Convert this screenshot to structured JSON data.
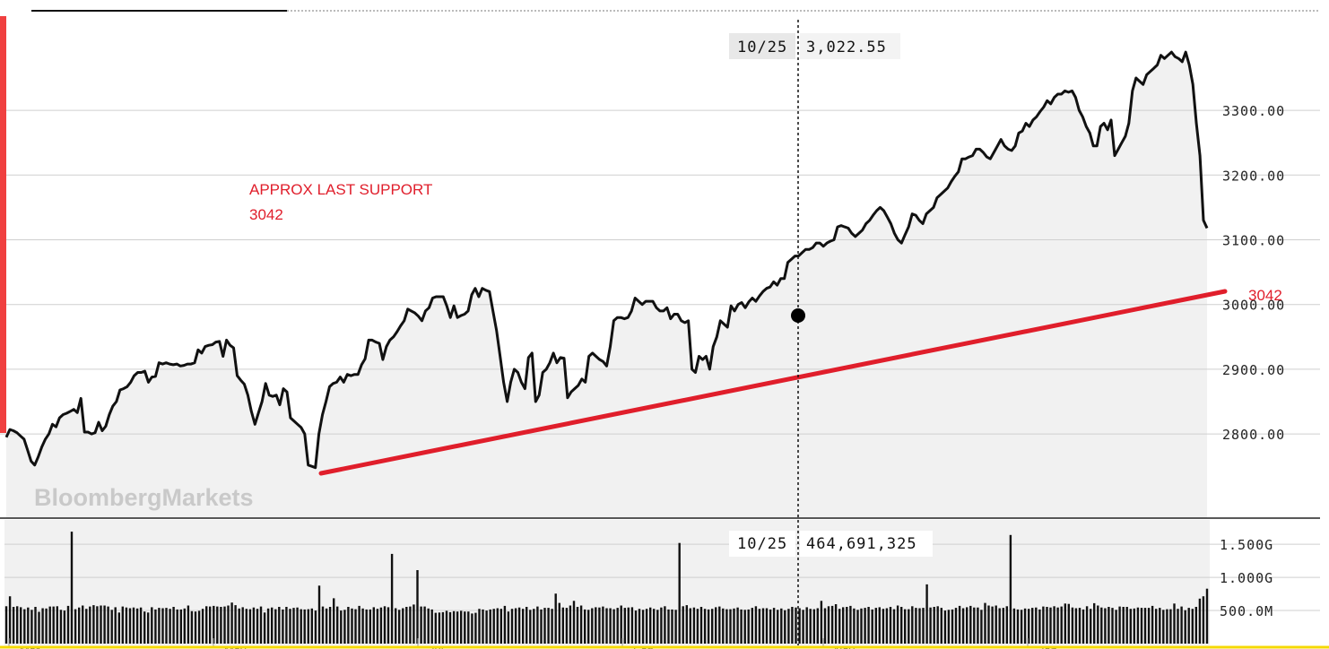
{
  "watermark": "BloombergMarkets",
  "annotation": {
    "line1": "APPROX LAST SUPPORT",
    "line2": "3042"
  },
  "trendline_label": "3042",
  "crosshair": {
    "date": "10/25",
    "price": "3,022.55",
    "volume": "464,691,325"
  },
  "colors": {
    "line": "#111111",
    "trend": "#e01e2b",
    "panel": "#f1f1f1",
    "grid": "#cfcfcf",
    "accent_bar": "#f04040"
  },
  "chart_data": [
    {
      "type": "line",
      "title": "",
      "y_ticks": [
        "2800.00",
        "2900.00",
        "3000.00",
        "3100.00",
        "3200.00",
        "3300.00"
      ],
      "x_ticks": [
        "Mar",
        "May",
        "Jul",
        "Sep",
        "Nov",
        "Jan"
      ],
      "ylim": [
        2670,
        3440
      ],
      "grid": true,
      "series": [
        {
          "values": [
            2795,
            2807,
            2805,
            2802,
            2797,
            2792,
            2775,
            2758,
            2752,
            2765,
            2780,
            2792,
            2800,
            2815,
            2811,
            2825,
            2830,
            2832,
            2835,
            2838,
            2833,
            2855,
            2803,
            2803,
            2800,
            2802,
            2818,
            2805,
            2812,
            2830,
            2843,
            2850,
            2868,
            2870,
            2873,
            2880,
            2890,
            2895,
            2895,
            2897,
            2880,
            2888,
            2889,
            2910,
            2908,
            2910,
            2908,
            2907,
            2908,
            2905,
            2906,
            2908,
            2908,
            2910,
            2930,
            2925,
            2935,
            2937,
            2938,
            2942,
            2943,
            2920,
            2945,
            2937,
            2933,
            2890,
            2883,
            2877,
            2860,
            2835,
            2815,
            2833,
            2850,
            2878,
            2860,
            2858,
            2860,
            2845,
            2870,
            2865,
            2825,
            2820,
            2815,
            2810,
            2800,
            2752,
            2750,
            2748,
            2800,
            2830,
            2850,
            2873,
            2878,
            2880,
            2888,
            2880,
            2892,
            2890,
            2892,
            2892,
            2907,
            2916,
            2945,
            2945,
            2942,
            2940,
            2915,
            2935,
            2945,
            2950,
            2958,
            2967,
            2975,
            2993,
            2990,
            2987,
            2982,
            2975,
            2990,
            2995,
            3010,
            3012,
            3012,
            3012,
            2998,
            2980,
            2998,
            2980,
            2983,
            2985,
            2990,
            3015,
            3025,
            3012,
            3025,
            3022,
            3020,
            2990,
            2960,
            2920,
            2880,
            2850,
            2880,
            2900,
            2895,
            2880,
            2870,
            2918,
            2925,
            2850,
            2860,
            2895,
            2900,
            2910,
            2925,
            2910,
            2918,
            2917,
            2856,
            2865,
            2870,
            2875,
            2885,
            2880,
            2920,
            2925,
            2920,
            2915,
            2912,
            2905,
            2935,
            2975,
            2980,
            2980,
            2978,
            2980,
            2990,
            3010,
            3005,
            3000,
            3005,
            3005,
            3005,
            2995,
            2990,
            2990,
            2995,
            2978,
            2985,
            2985,
            2975,
            2972,
            2975,
            2900,
            2895,
            2920,
            2915,
            2920,
            2900,
            2935,
            2950,
            2975,
            2970,
            2965,
            2998,
            2990,
            3000,
            3003,
            2995,
            3004,
            3010,
            3005,
            3013,
            3020,
            3025,
            3027,
            3035,
            3030,
            3040,
            3040,
            3065,
            3070,
            3075,
            3075,
            3080,
            3085,
            3085,
            3088,
            3095,
            3095,
            3090,
            3095,
            3098,
            3100,
            3120,
            3122,
            3120,
            3118,
            3110,
            3105,
            3110,
            3115,
            3125,
            3130,
            3138,
            3145,
            3150,
            3145,
            3135,
            3125,
            3110,
            3100,
            3095,
            3108,
            3120,
            3140,
            3138,
            3130,
            3125,
            3140,
            3145,
            3150,
            3165,
            3170,
            3175,
            3180,
            3190,
            3198,
            3205,
            3225,
            3225,
            3228,
            3230,
            3240,
            3240,
            3235,
            3228,
            3225,
            3235,
            3245,
            3255,
            3245,
            3240,
            3238,
            3245,
            3265,
            3268,
            3280,
            3275,
            3285,
            3290,
            3298,
            3305,
            3315,
            3310,
            3320,
            3325,
            3325,
            3330,
            3328,
            3330,
            3320,
            3300,
            3290,
            3275,
            3265,
            3245,
            3245,
            3275,
            3280,
            3270,
            3285,
            3230,
            3240,
            3250,
            3260,
            3280,
            3330,
            3350,
            3345,
            3340,
            3355,
            3360,
            3365,
            3370,
            3385,
            3380,
            3385,
            3390,
            3383,
            3380,
            3375,
            3390,
            3370,
            3340,
            3280,
            3230,
            3130,
            3118
          ]
        }
      ]
    },
    {
      "type": "bar",
      "title": "",
      "y_ticks": [
        "500.0M",
        "1.000G",
        "1.500G"
      ],
      "ylim": [
        0,
        1800000000
      ],
      "values": [
        565,
        715,
        555,
        565,
        550,
        520,
        545,
        510,
        555,
        480,
        535,
        530,
        560,
        560,
        565,
        510,
        500,
        570,
        1690,
        520,
        545,
        575,
        525,
        560,
        580,
        565,
        575,
        575,
        560,
        510,
        550,
        470,
        560,
        545,
        535,
        545,
        530,
        545,
        485,
        470,
        550,
        515,
        540,
        535,
        540,
        525,
        555,
        515,
        515,
        530,
        575,
        490,
        485,
        495,
        525,
        565,
        560,
        570,
        560,
        555,
        560,
        575,
        620,
        580,
        530,
        550,
        525,
        520,
        545,
        525,
        560,
        470,
        530,
        545,
        520,
        555,
        515,
        555,
        525,
        540,
        545,
        520,
        515,
        520,
        530,
        500,
        875,
        560,
        530,
        555,
        685,
        560,
        500,
        510,
        555,
        530,
        520,
        570,
        530,
        515,
        515,
        550,
        525,
        545,
        565,
        550,
        1355,
        535,
        510,
        535,
        555,
        560,
        590,
        1110,
        560,
        560,
        530,
        515,
        465,
        470,
        475,
        495,
        475,
        490,
        485,
        495,
        485,
        485,
        455,
        465,
        525,
        515,
        500,
        515,
        525,
        535,
        525,
        570,
        485,
        525,
        535,
        545,
        525,
        555,
        510,
        525,
        560,
        515,
        540,
        540,
        525,
        755,
        615,
        545,
        540,
        575,
        645,
        555,
        575,
        515,
        510,
        535,
        550,
        545,
        560,
        535,
        535,
        520,
        540,
        575,
        540,
        545,
        550,
        500,
        525,
        510,
        525,
        545,
        525,
        510,
        545,
        565,
        515,
        515,
        510,
        1520,
        565,
        580,
        535,
        545,
        525,
        555,
        525,
        515,
        525,
        550,
        560,
        530,
        520,
        520,
        530,
        545,
        515,
        510,
        515,
        540,
        565,
        525,
        535,
        535,
        515,
        540,
        510,
        530,
        505,
        525,
        555,
        545,
        535,
        510,
        550,
        525,
        520,
        535,
        645,
        535,
        565,
        570,
        595,
        525,
        550,
        555,
        570,
        530,
        510,
        530,
        540,
        555,
        515,
        540,
        550,
        525,
        535,
        555,
        520,
        575,
        555,
        520,
        520,
        565,
        540,
        535,
        540,
        895,
        545,
        555,
        565,
        540,
        500,
        510,
        515,
        540,
        570,
        535,
        550,
        570,
        545,
        545,
        510,
        615,
        575,
        560,
        575,
        535,
        540,
        565,
        1640,
        530,
        515,
        510,
        530,
        525,
        540,
        545,
        515,
        560,
        555,
        545,
        565,
        545,
        560,
        605,
        600,
        545,
        535,
        540,
        515,
        565,
        525,
        610,
        575,
        545,
        535,
        555,
        540,
        510,
        560,
        555,
        555,
        525,
        530,
        545,
        540,
        540,
        540,
        570,
        525,
        540,
        510,
        520,
        520,
        605,
        525,
        560,
        505,
        540,
        525,
        555,
        680,
        715,
        830
      ]
    }
  ]
}
